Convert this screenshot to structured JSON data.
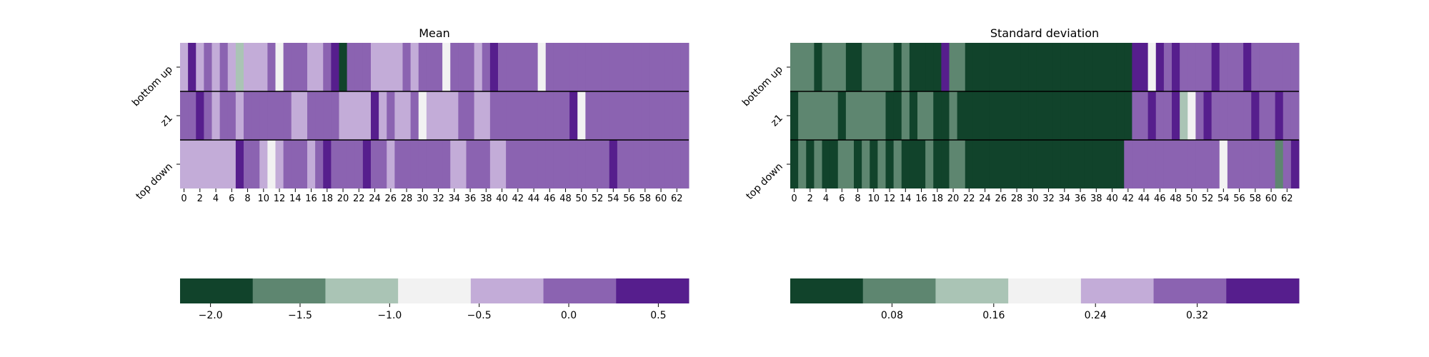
{
  "chart_data": [
    {
      "type": "heatmap",
      "title": "Mean",
      "rows": [
        "bottom up",
        "z1",
        "top down"
      ],
      "x_ticks": [
        "0",
        "2",
        "4",
        "6",
        "8",
        "10",
        "12",
        "14",
        "16",
        "18",
        "20",
        "22",
        "24",
        "26",
        "28",
        "30",
        "32",
        "34",
        "36",
        "38",
        "40",
        "42",
        "44",
        "46",
        "48",
        "50",
        "52",
        "54",
        "56",
        "58",
        "60",
        "62"
      ],
      "color_bins": [
        "#11432b",
        "#5e8670",
        "#aac4b5",
        "#f2f2f2",
        "#c3acd8",
        "#8b63b1",
        "#561e8d"
      ],
      "colorbar_ticks": [
        {
          "label": "−2.0",
          "value": -2.0
        },
        {
          "label": "−1.5",
          "value": -1.5
        },
        {
          "label": "−1.0",
          "value": -1.0
        },
        {
          "label": "−0.5",
          "value": -0.5
        },
        {
          "label": "0.0",
          "value": 0.0
        },
        {
          "label": "0.5",
          "value": 0.5
        }
      ],
      "colorbar_range": [
        -2.17,
        0.67
      ],
      "cell_bins": [
        [
          4,
          6,
          4,
          5,
          4,
          5,
          4,
          2,
          4,
          4,
          4,
          5,
          3,
          5,
          5,
          5,
          4,
          4,
          5,
          6,
          0,
          5,
          5,
          5,
          4,
          4,
          4,
          4,
          5,
          4,
          5,
          5,
          5,
          3,
          5,
          5,
          5,
          4,
          5,
          6,
          5,
          5,
          5,
          5,
          5,
          3,
          5,
          5,
          5,
          5,
          5,
          5,
          5,
          5,
          5,
          5,
          5,
          5,
          5,
          5,
          5,
          5,
          5,
          5
        ],
        [
          5,
          5,
          6,
          5,
          4,
          5,
          5,
          4,
          5,
          5,
          5,
          5,
          5,
          5,
          4,
          4,
          5,
          5,
          5,
          5,
          4,
          4,
          4,
          4,
          6,
          4,
          5,
          4,
          4,
          5,
          3,
          4,
          4,
          4,
          4,
          5,
          5,
          4,
          4,
          5,
          5,
          5,
          5,
          5,
          5,
          5,
          5,
          5,
          5,
          6,
          3,
          5,
          5,
          5,
          5,
          5,
          5,
          5,
          5,
          5,
          5,
          5,
          5,
          5
        ],
        [
          4,
          4,
          4,
          4,
          4,
          4,
          4,
          6,
          5,
          5,
          4,
          3,
          4,
          5,
          5,
          5,
          4,
          5,
          6,
          5,
          5,
          5,
          5,
          6,
          5,
          5,
          4,
          5,
          5,
          5,
          5,
          5,
          5,
          5,
          4,
          4,
          5,
          5,
          5,
          4,
          4,
          5,
          5,
          5,
          5,
          5,
          5,
          5,
          5,
          5,
          5,
          5,
          5,
          5,
          6,
          5,
          5,
          5,
          5,
          5,
          5,
          5,
          5,
          5
        ]
      ]
    },
    {
      "type": "heatmap",
      "title": "Standard deviation",
      "rows": [
        "bottom up",
        "z1",
        "top down"
      ],
      "x_ticks": [
        "0",
        "2",
        "4",
        "6",
        "8",
        "10",
        "12",
        "14",
        "16",
        "18",
        "20",
        "22",
        "24",
        "26",
        "28",
        "30",
        "32",
        "34",
        "36",
        "38",
        "40",
        "42",
        "44",
        "46",
        "48",
        "50",
        "52",
        "54",
        "56",
        "58",
        "60",
        "62"
      ],
      "color_bins": [
        "#11432b",
        "#5e8670",
        "#aac4b5",
        "#f2f2f2",
        "#c3acd8",
        "#8b63b1",
        "#561e8d"
      ],
      "colorbar_ticks": [
        {
          "label": "0.08",
          "value": 0.08
        },
        {
          "label": "0.16",
          "value": 0.16
        },
        {
          "label": "0.24",
          "value": 0.24
        },
        {
          "label": "0.32",
          "value": 0.32
        }
      ],
      "colorbar_range": [
        0.0,
        0.4
      ],
      "cell_bins": [
        [
          1,
          1,
          1,
          0,
          1,
          1,
          1,
          0,
          0,
          1,
          1,
          1,
          1,
          0,
          1,
          0,
          0,
          0,
          0,
          6,
          1,
          1,
          0,
          0,
          0,
          0,
          0,
          0,
          0,
          0,
          0,
          0,
          0,
          0,
          0,
          0,
          0,
          0,
          0,
          0,
          0,
          0,
          0,
          6,
          6,
          3,
          6,
          5,
          6,
          5,
          5,
          5,
          5,
          6,
          5,
          5,
          5,
          6,
          5,
          5,
          5,
          5,
          5,
          5
        ],
        [
          0,
          1,
          1,
          1,
          1,
          1,
          0,
          1,
          1,
          1,
          1,
          1,
          0,
          0,
          1,
          0,
          1,
          1,
          0,
          0,
          1,
          0,
          0,
          0,
          0,
          0,
          0,
          0,
          0,
          0,
          0,
          0,
          0,
          0,
          0,
          0,
          0,
          0,
          0,
          0,
          0,
          0,
          0,
          5,
          5,
          6,
          5,
          5,
          6,
          2,
          3,
          5,
          6,
          5,
          5,
          5,
          5,
          5,
          6,
          5,
          5,
          6,
          5,
          5
        ],
        [
          0,
          1,
          0,
          1,
          0,
          0,
          1,
          1,
          0,
          1,
          0,
          1,
          0,
          1,
          0,
          0,
          0,
          1,
          0,
          0,
          1,
          1,
          0,
          0,
          0,
          0,
          0,
          0,
          0,
          0,
          0,
          0,
          0,
          0,
          0,
          0,
          0,
          0,
          0,
          0,
          0,
          0,
          5,
          5,
          5,
          5,
          5,
          5,
          5,
          5,
          5,
          5,
          5,
          5,
          3,
          5,
          5,
          5,
          5,
          5,
          5,
          1,
          5,
          6
        ]
      ]
    }
  ]
}
